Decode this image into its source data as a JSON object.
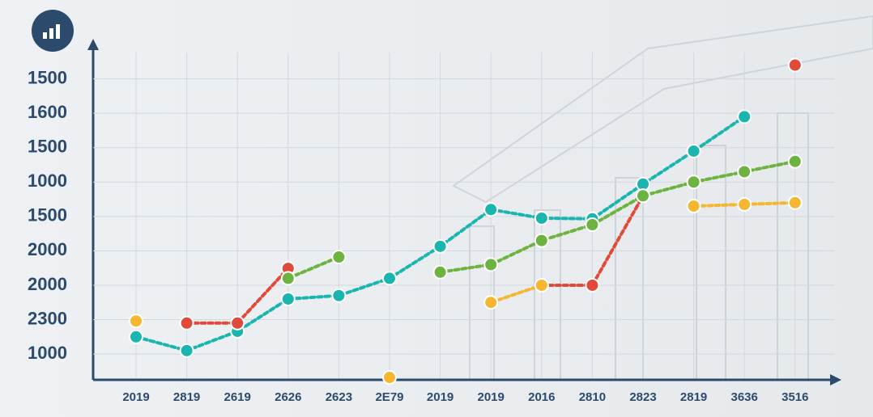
{
  "chart_data": {
    "type": "line",
    "categories": [
      "2019",
      "2819",
      "2619",
      "2626",
      "2623",
      "2E79",
      "2019",
      "2019",
      "2016",
      "2810",
      "2823",
      "2819",
      "3636",
      "3516"
    ],
    "ylim": [
      0.25,
      10
    ],
    "yticks": [
      {
        "value": 1,
        "label": "1000"
      },
      {
        "value": 2,
        "label": "2300"
      },
      {
        "value": 3,
        "label": "2000"
      },
      {
        "value": 4,
        "label": "2000"
      },
      {
        "value": 5,
        "label": "1500"
      },
      {
        "value": 6,
        "label": "1000"
      },
      {
        "value": 7,
        "label": "1500"
      },
      {
        "value": 8,
        "label": "1600"
      },
      {
        "value": 9,
        "label": "1500"
      }
    ],
    "grid": true,
    "series": [
      {
        "color": "#1bb5b0",
        "values": [
          1.5,
          1.1,
          1.66,
          2.6,
          2.7,
          3.2,
          4.13,
          5.2,
          4.95,
          4.93,
          5.94,
          6.9,
          7.9,
          null
        ]
      },
      {
        "color": "#e04a3a",
        "values": [
          null,
          1.9,
          1.9,
          3.49,
          null,
          null,
          null,
          null,
          3.0,
          3.0,
          5.6,
          null,
          null,
          9.4
        ]
      },
      {
        "color": "#6db33f",
        "values": [
          null,
          null,
          null,
          3.2,
          3.82,
          null,
          3.38,
          3.6,
          4.3,
          4.76,
          5.6,
          6.0,
          6.3,
          6.6
        ]
      },
      {
        "color": "#f5b731",
        "values": [
          1.96,
          null,
          null,
          null,
          null,
          0.32,
          null,
          2.5,
          3.0,
          null,
          null,
          5.3,
          5.35,
          5.4
        ]
      }
    ]
  }
}
